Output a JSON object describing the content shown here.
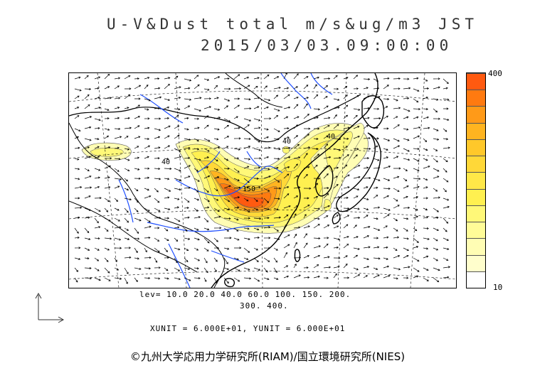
{
  "header": {
    "title_line1": "U-V&Dust total m/s&ug/m3 JST",
    "title_line2": "2015/03/03.09:00:00"
  },
  "colorbar": {
    "max_label": "400",
    "min_label": "10",
    "colors": [
      "#ff5a10",
      "#ff7a10",
      "#ff9a18",
      "#ffb420",
      "#ffc82a",
      "#ffd838",
      "#ffe848",
      "#fff050",
      "#fff878",
      "#fffc98",
      "#fffdb4",
      "#fffecc",
      "#ffffff"
    ]
  },
  "contour_info": {
    "levels_line1": "lev= 10.0 20.0 40.0 60.0 100. 150. 200.",
    "levels_line2": "300. 400.",
    "units_line": "XUNIT = 6.000E+01, YUNIT = 6.000E+01"
  },
  "map": {
    "contour_labels": [
      "40",
      "40",
      "150",
      "40"
    ],
    "colors": {
      "coast": "#000000",
      "river": "#1f4fff",
      "grid": "#000000"
    }
  },
  "footer": {
    "copyright": "©九州大学応用力学研究所(RIAM)/国立環境研究所(NIES)"
  }
}
